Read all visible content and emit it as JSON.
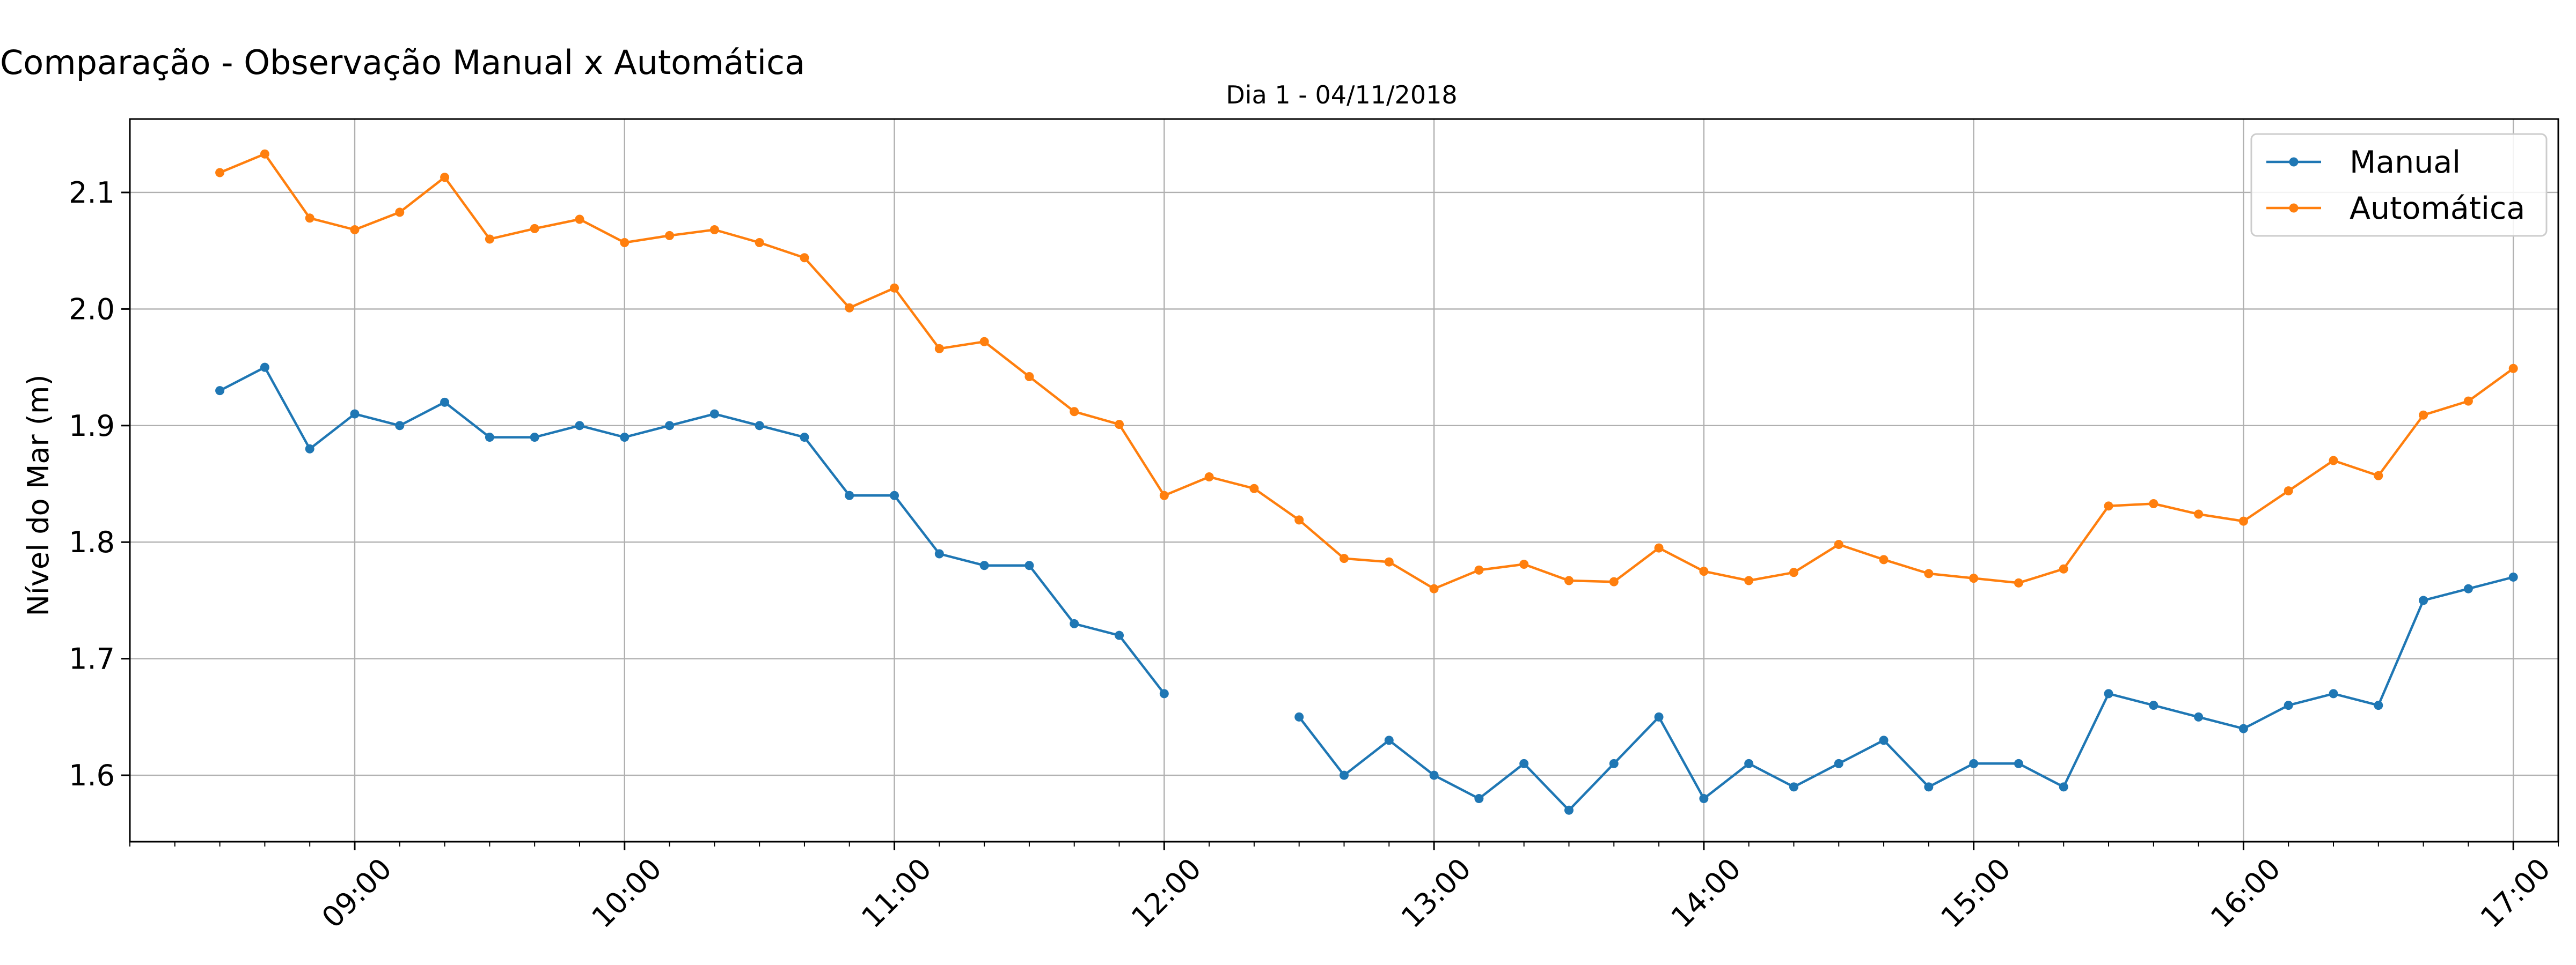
{
  "chart_data": {
    "type": "line",
    "suptitle": "Comparação - Observação Manual x Automática",
    "title": "Dia 1 - 04/11/2018",
    "xlabel": "",
    "ylabel": "Nível do Mar (m)",
    "x_tick_labels": [
      "09:00",
      "10:00",
      "11:00",
      "12:00",
      "13:00",
      "14:00",
      "15:00",
      "16:00",
      "17:00"
    ],
    "y_tick_labels": [
      "1.6",
      "1.7",
      "1.8",
      "1.9",
      "2.0",
      "2.1"
    ],
    "xlim": [
      "08:10",
      "17:10"
    ],
    "ylim": [
      1.543,
      2.163
    ],
    "grid": true,
    "legend_position": "top-right",
    "x": [
      "08:30",
      "08:40",
      "08:50",
      "09:00",
      "09:10",
      "09:20",
      "09:30",
      "09:40",
      "09:50",
      "10:00",
      "10:10",
      "10:20",
      "10:30",
      "10:40",
      "10:50",
      "11:00",
      "11:10",
      "11:20",
      "11:30",
      "11:40",
      "11:50",
      "12:00",
      "12:10",
      "12:20",
      "12:30",
      "12:40",
      "12:50",
      "13:00",
      "13:10",
      "13:20",
      "13:30",
      "13:40",
      "13:50",
      "14:00",
      "14:10",
      "14:20",
      "14:30",
      "14:40",
      "14:50",
      "15:00",
      "15:10",
      "15:20",
      "15:30",
      "15:40",
      "15:50",
      "16:00",
      "16:10",
      "16:20",
      "16:30",
      "16:40",
      "16:50",
      "17:00"
    ],
    "series": [
      {
        "name": "Manual",
        "color": "#1f77b4",
        "values": [
          1.93,
          1.95,
          1.88,
          1.91,
          1.9,
          1.92,
          1.89,
          1.89,
          1.9,
          1.89,
          1.9,
          1.91,
          1.9,
          1.89,
          1.84,
          1.84,
          1.79,
          1.78,
          1.78,
          1.73,
          1.72,
          1.67,
          null,
          null,
          1.65,
          1.6,
          1.63,
          1.6,
          1.58,
          1.61,
          1.57,
          1.61,
          1.65,
          1.58,
          1.61,
          1.59,
          1.61,
          1.63,
          1.59,
          1.61,
          1.61,
          1.59,
          1.67,
          1.66,
          1.65,
          1.64,
          1.66,
          1.67,
          1.66,
          1.75,
          1.76,
          1.77
        ]
      },
      {
        "name": "Automática",
        "color": "#ff7f0e",
        "values": [
          2.117,
          2.133,
          2.078,
          2.068,
          2.083,
          2.113,
          2.06,
          2.069,
          2.077,
          2.057,
          2.063,
          2.068,
          2.057,
          2.044,
          2.001,
          2.018,
          1.966,
          1.972,
          1.942,
          1.912,
          1.901,
          1.84,
          1.856,
          1.846,
          1.819,
          1.786,
          1.783,
          1.76,
          1.776,
          1.781,
          1.767,
          1.766,
          1.795,
          1.775,
          1.767,
          1.774,
          1.798,
          1.785,
          1.773,
          1.769,
          1.765,
          1.777,
          1.831,
          1.833,
          1.824,
          1.818,
          1.844,
          1.87,
          1.857,
          1.909,
          1.921,
          1.949
        ]
      }
    ]
  }
}
